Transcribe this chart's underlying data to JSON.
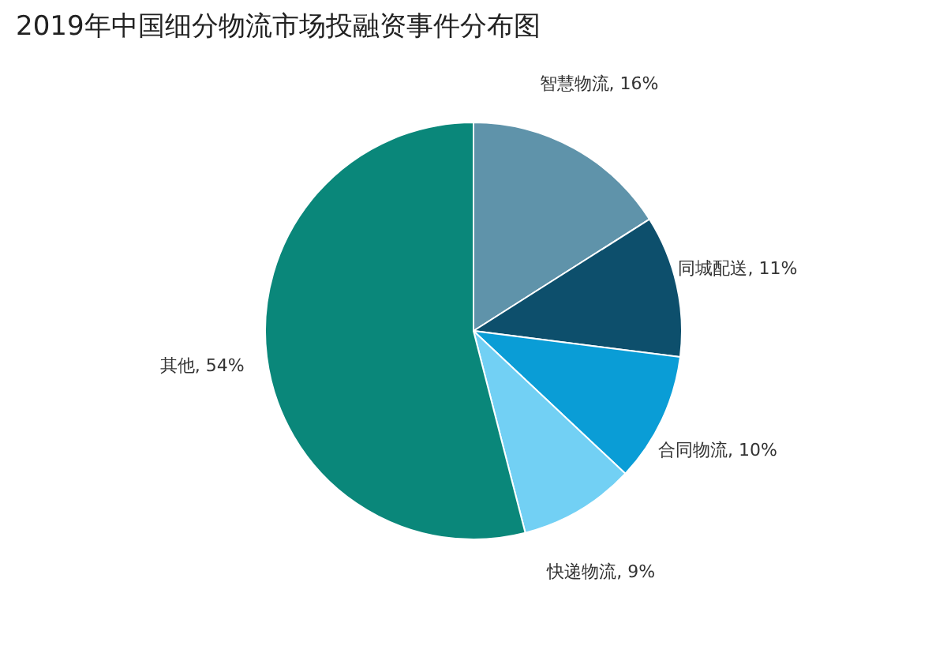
{
  "chart_data": {
    "type": "pie",
    "title": "2019年中国细分物流市场投融资事件分布图",
    "categories": [
      "智慧物流",
      "同城配送",
      "合同物流",
      "快递物流",
      "其他"
    ],
    "values": [
      16,
      11,
      10,
      9,
      54
    ],
    "colors": [
      "#5f93aa",
      "#0d4f6c",
      "#0a9dd6",
      "#72d0f4",
      "#0a877a"
    ],
    "value_labels": [
      ", 16%",
      ", 11%",
      ", 10%",
      ", 9%",
      ", 54%"
    ],
    "legend": false
  }
}
